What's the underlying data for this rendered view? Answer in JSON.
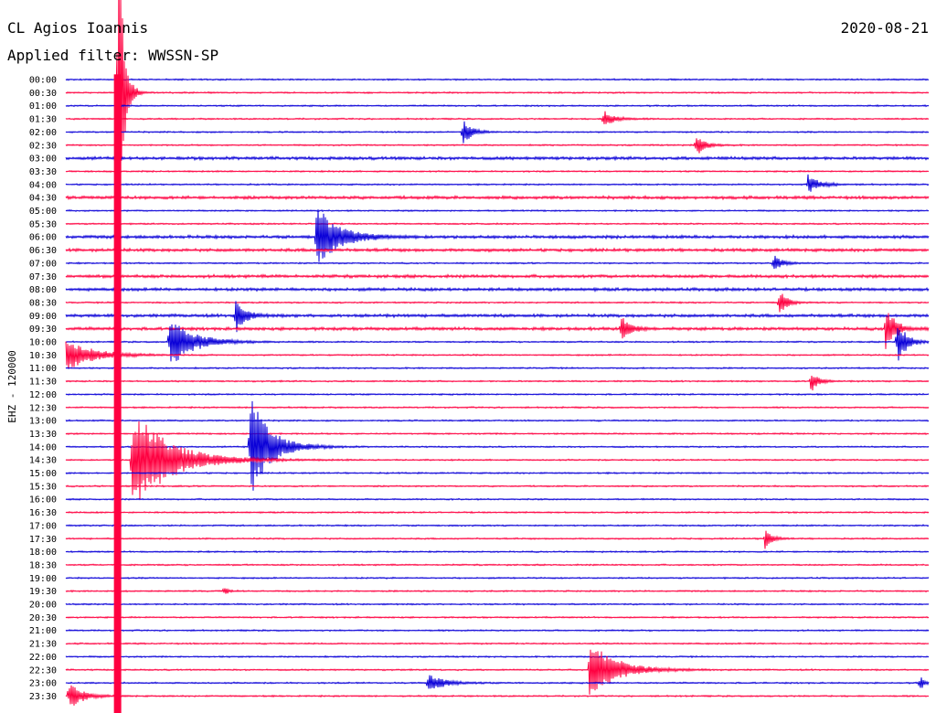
{
  "header": {
    "station": "CL Agios Ioannis",
    "date": "2020-08-21",
    "filter": "Applied filter: WWSSN-SP"
  },
  "chart_data": {
    "type": "line",
    "title": "CL Agios Ioannis",
    "subtitle": "Applied filter: WWSSN-SP",
    "date": "2020-08-21",
    "ylabel": "EHZ - 120000",
    "xlabel": "",
    "grid": false,
    "colors": {
      "even_hour": "#0a00d8",
      "half_hour": "#ff0040"
    },
    "trace_minutes": 30,
    "time_labels": [
      "00:00",
      "00:30",
      "01:00",
      "01:30",
      "02:00",
      "02:30",
      "03:00",
      "03:30",
      "04:00",
      "04:30",
      "05:00",
      "05:30",
      "06:00",
      "06:30",
      "07:00",
      "07:30",
      "08:00",
      "08:30",
      "09:00",
      "09:30",
      "10:00",
      "10:30",
      "11:00",
      "11:30",
      "12:00",
      "12:30",
      "13:00",
      "13:30",
      "14:00",
      "14:30",
      "15:00",
      "15:30",
      "16:00",
      "16:30",
      "17:00",
      "17:30",
      "18:00",
      "18:30",
      "19:00",
      "19:30",
      "20:00",
      "20:30",
      "21:00",
      "21:30",
      "22:00",
      "22:30",
      "23:00",
      "23:30"
    ],
    "noise_level": [
      1,
      1,
      1,
      1,
      1,
      1,
      2,
      1,
      1,
      2,
      1,
      1,
      2,
      2,
      1,
      2,
      2,
      1,
      2,
      2,
      1,
      1,
      1,
      1,
      1,
      1,
      1,
      1,
      1,
      1,
      1,
      1,
      1,
      1,
      1,
      1,
      1,
      1,
      1,
      1,
      1,
      1,
      1,
      1,
      1,
      1,
      1,
      1
    ],
    "events": [
      {
        "trace": "00:30",
        "minute": 1.8,
        "amplitude": 40,
        "duration_min": 0.3
      },
      {
        "trace": "01:30",
        "minute": 18.7,
        "amplitude": 1.5,
        "duration_min": 0.6
      },
      {
        "trace": "02:00",
        "minute": 13.8,
        "amplitude": 2.2,
        "duration_min": 0.5
      },
      {
        "trace": "02:30",
        "minute": 21.9,
        "amplitude": 2.2,
        "duration_min": 0.5
      },
      {
        "trace": "04:00",
        "minute": 25.8,
        "amplitude": 1.6,
        "duration_min": 0.7
      },
      {
        "trace": "06:00",
        "minute": 8.7,
        "amplitude": 5.5,
        "duration_min": 1.3
      },
      {
        "trace": "07:00",
        "minute": 24.6,
        "amplitude": 1.6,
        "duration_min": 0.5
      },
      {
        "trace": "08:30",
        "minute": 24.8,
        "amplitude": 2.6,
        "duration_min": 0.4
      },
      {
        "trace": "09:00",
        "minute": 5.9,
        "amplitude": 3.5,
        "duration_min": 0.5
      },
      {
        "trace": "09:30",
        "minute": 19.3,
        "amplitude": 2.6,
        "duration_min": 0.5
      },
      {
        "trace": "09:30",
        "minute": 28.5,
        "amplitude": 4.5,
        "duration_min": 0.5
      },
      {
        "trace": "10:00",
        "minute": 3.6,
        "amplitude": 4.5,
        "duration_min": 1.4
      },
      {
        "trace": "10:00",
        "minute": 28.9,
        "amplitude": 4.5,
        "duration_min": 0.5
      },
      {
        "trace": "10:30",
        "minute": 0.0,
        "amplitude": 3.0,
        "duration_min": 1.5
      },
      {
        "trace": "11:30",
        "minute": 25.9,
        "amplitude": 2.0,
        "duration_min": 0.4
      },
      {
        "trace": "14:00",
        "minute": 6.4,
        "amplitude": 9.0,
        "duration_min": 1.2
      },
      {
        "trace": "14:30",
        "minute": 2.3,
        "amplitude": 9.0,
        "duration_min": 2.2
      },
      {
        "trace": "17:30",
        "minute": 24.3,
        "amplitude": 1.8,
        "duration_min": 0.4
      },
      {
        "trace": "19:30",
        "minute": 5.5,
        "amplitude": 0.8,
        "duration_min": 0.2
      },
      {
        "trace": "22:30",
        "minute": 18.2,
        "amplitude": 5.0,
        "duration_min": 1.6
      },
      {
        "trace": "23:00",
        "minute": 12.6,
        "amplitude": 1.7,
        "duration_min": 0.9
      },
      {
        "trace": "23:00",
        "minute": 29.7,
        "amplitude": 1.5,
        "duration_min": 0.2
      },
      {
        "trace": "23:30",
        "minute": 0.1,
        "amplitude": 2.4,
        "duration_min": 0.8
      }
    ]
  }
}
